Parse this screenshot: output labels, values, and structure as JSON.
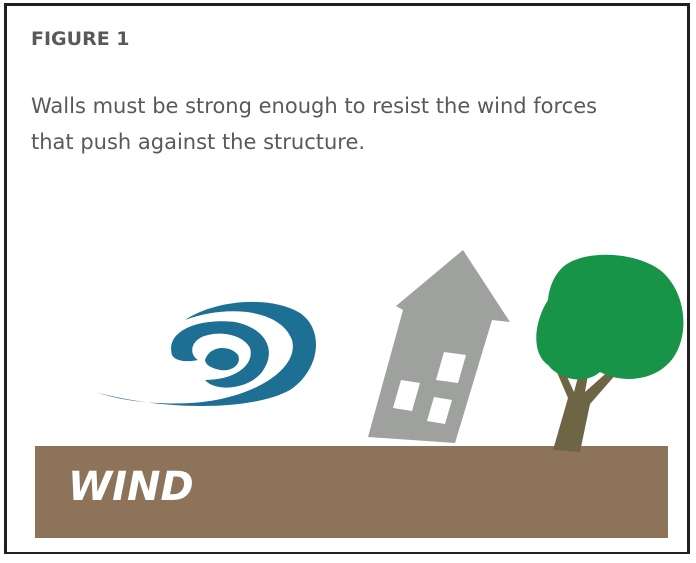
{
  "figure": {
    "label": "FIGURE 1",
    "caption": "Walls must be strong enough to resist the wind forces that push against the structure.",
    "ground_label": "WIND"
  }
}
